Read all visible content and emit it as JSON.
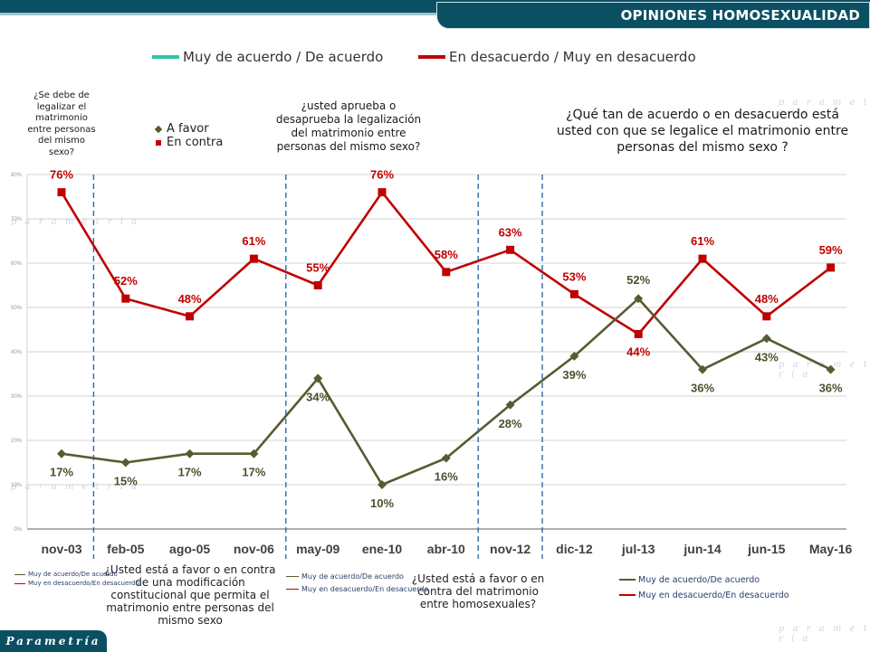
{
  "header": {
    "title": "OPINIONES HOMOSEXUALIDAD"
  },
  "brand": {
    "name": "Parametría"
  },
  "watermark": {
    "text": "p a r a m e t r i a"
  },
  "legend": {
    "favor": {
      "label": "Muy de acuerdo / De acuerdo",
      "color": "#2ec4a6"
    },
    "contra": {
      "label": "En desacuerdo / Muy en desacuerdo",
      "color": "#c00000"
    }
  },
  "inner_legend": {
    "favor": "A favor",
    "contra": "En contra"
  },
  "questions": {
    "q1": "¿Se debe de legalizar el matrimonio entre personas del mismo sexo?",
    "q2": "¿usted aprueba o desaprueba la legalización del matrimonio entre personas del mismo sexo?",
    "q3": "¿Qué tan de acuerdo o en desacuerdo está usted con que se legalice el matrimonio entre personas del mismo sexo ?",
    "q4": "¿Usted está a favor o en contra de una modificación constitucional que permita el matrimonio entre personas del mismo sexo",
    "q5": "¿Usted está a favor o en contra del matrimonio entre homosexuales?"
  },
  "mini_legends": {
    "favor": "Muy de acuerdo/De acuerdo",
    "contra": "Muy en desacuerdo/En desacuerdo"
  },
  "chart_data": {
    "type": "line",
    "categories": [
      "nov-03",
      "feb-05",
      "ago-05",
      "nov-06",
      "may-09",
      "ene-10",
      "abr-10",
      "nov-12",
      "dic-12",
      "jul-13",
      "jun-14",
      "jun-15",
      "May-16"
    ],
    "series": [
      {
        "name": "En contra",
        "color": "#c00000",
        "values": [
          76,
          52,
          48,
          61,
          55,
          76,
          58,
          63,
          53,
          44,
          61,
          48,
          59
        ]
      },
      {
        "name": "A favor",
        "color": "#5a5a32",
        "values": [
          17,
          15,
          17,
          17,
          34,
          10,
          16,
          28,
          39,
          52,
          36,
          43,
          36
        ]
      }
    ],
    "data_labels": {
      "En contra": [
        "76%",
        "52%",
        "48%",
        "61%",
        "55%",
        "76%",
        "58%",
        "63%",
        "53%",
        "44%",
        "61%",
        "48%",
        "59%"
      ],
      "A favor": [
        "17%",
        "15%",
        "17%",
        "17%",
        "34%",
        "10%",
        "16%",
        "28%",
        "39%",
        "52%",
        "36%",
        "43%",
        "36%"
      ]
    },
    "yticks": [
      "0%",
      "10%",
      "20%",
      "30%",
      "40%",
      "50%",
      "60%",
      "70%",
      "80%"
    ],
    "ylim": [
      0,
      80
    ],
    "period_dividers_after": [
      "nov-03",
      "nov-06",
      "abr-10",
      "nov-12"
    ],
    "grid": true
  }
}
